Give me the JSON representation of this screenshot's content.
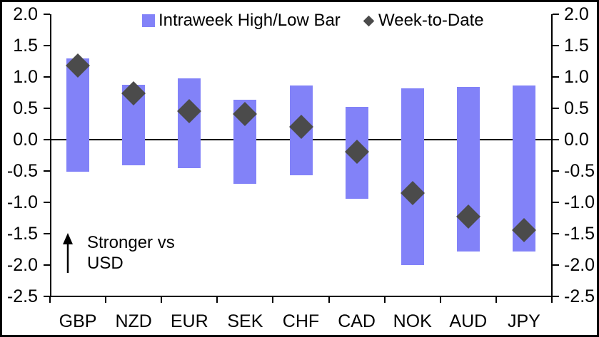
{
  "chart_data": {
    "type": "bar",
    "subtype": "floating-range-bars-with-diamond-markers",
    "title": "",
    "xlabel": "",
    "ylabel": "",
    "categories": [
      "GBP",
      "NZD",
      "EUR",
      "SEK",
      "CHF",
      "CAD",
      "NOK",
      "AUD",
      "JPY"
    ],
    "series": [
      {
        "name": "Intraweek High/Low Bar",
        "marker": "square",
        "color": "#8282F8",
        "high": [
          1.3,
          0.88,
          0.98,
          0.64,
          0.86,
          0.52,
          0.82,
          0.84,
          0.86
        ],
        "low": [
          -0.51,
          -0.41,
          -0.46,
          -0.71,
          -0.57,
          -0.94,
          -2.0,
          -1.78,
          -1.78
        ]
      },
      {
        "name": "Week-to-Date",
        "marker": "diamond",
        "color": "#4B4B4B",
        "values": [
          1.18,
          0.74,
          0.45,
          0.41,
          0.2,
          -0.19,
          -0.85,
          -1.23,
          -1.44
        ]
      }
    ],
    "ylim": [
      -2.5,
      2.0
    ],
    "ytick_step": 0.5,
    "yticks": [
      "2.0",
      "1.5",
      "1.0",
      "0.5",
      "0.0",
      "-0.5",
      "-1.0",
      "-1.5",
      "-2.0",
      "-2.5"
    ],
    "dual_axis_labels": true,
    "grid": "zero-line-only",
    "legend_position": "top-center",
    "axis_color": "#000000",
    "background_color": "#FFFFFF"
  },
  "annotation": {
    "line1": "Stronger vs",
    "line2": "USD",
    "icon": "up-arrow"
  }
}
